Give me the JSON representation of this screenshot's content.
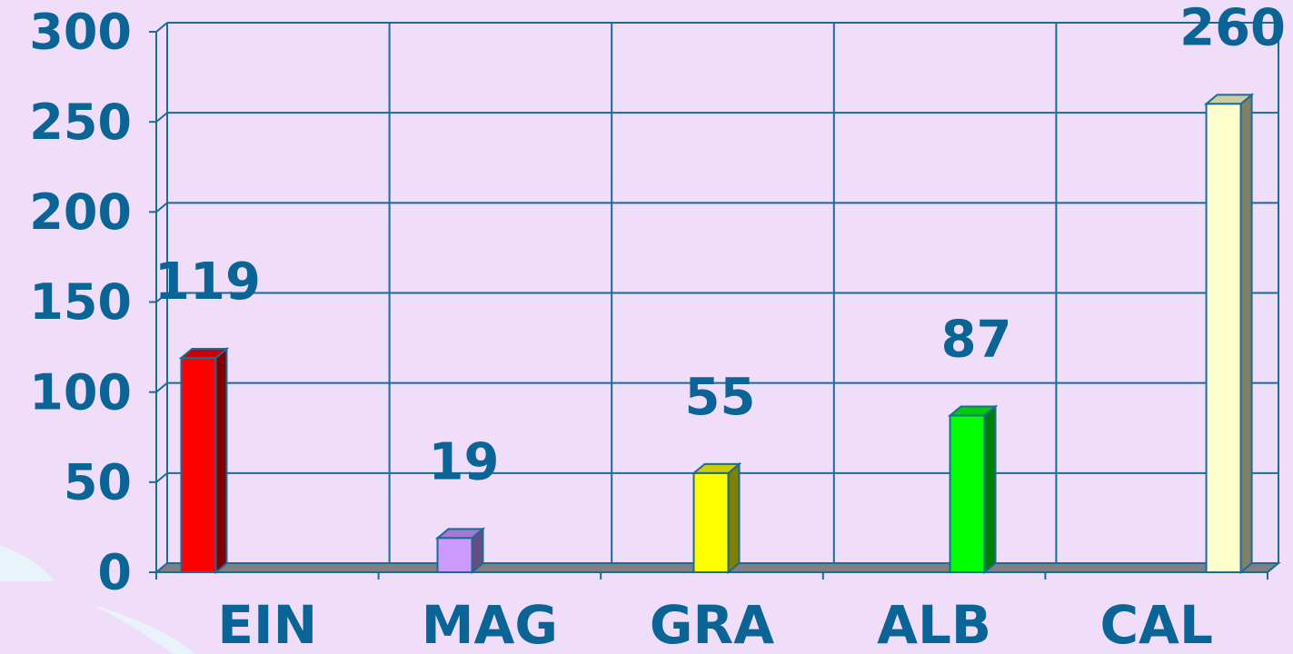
{
  "chart_data": {
    "type": "bar3d",
    "categories": [
      "EIN",
      "MAG",
      "GRA",
      "ALB",
      "CAL"
    ],
    "values": [
      119,
      19,
      55,
      87,
      260
    ],
    "colors": [
      "#ff0000",
      "#cc99ff",
      "#ffff00",
      "#00ff00",
      "#ffffcc"
    ],
    "ylim": [
      0,
      300
    ],
    "yticks": [
      0,
      50,
      100,
      150,
      200,
      250,
      300
    ],
    "grid": true
  }
}
